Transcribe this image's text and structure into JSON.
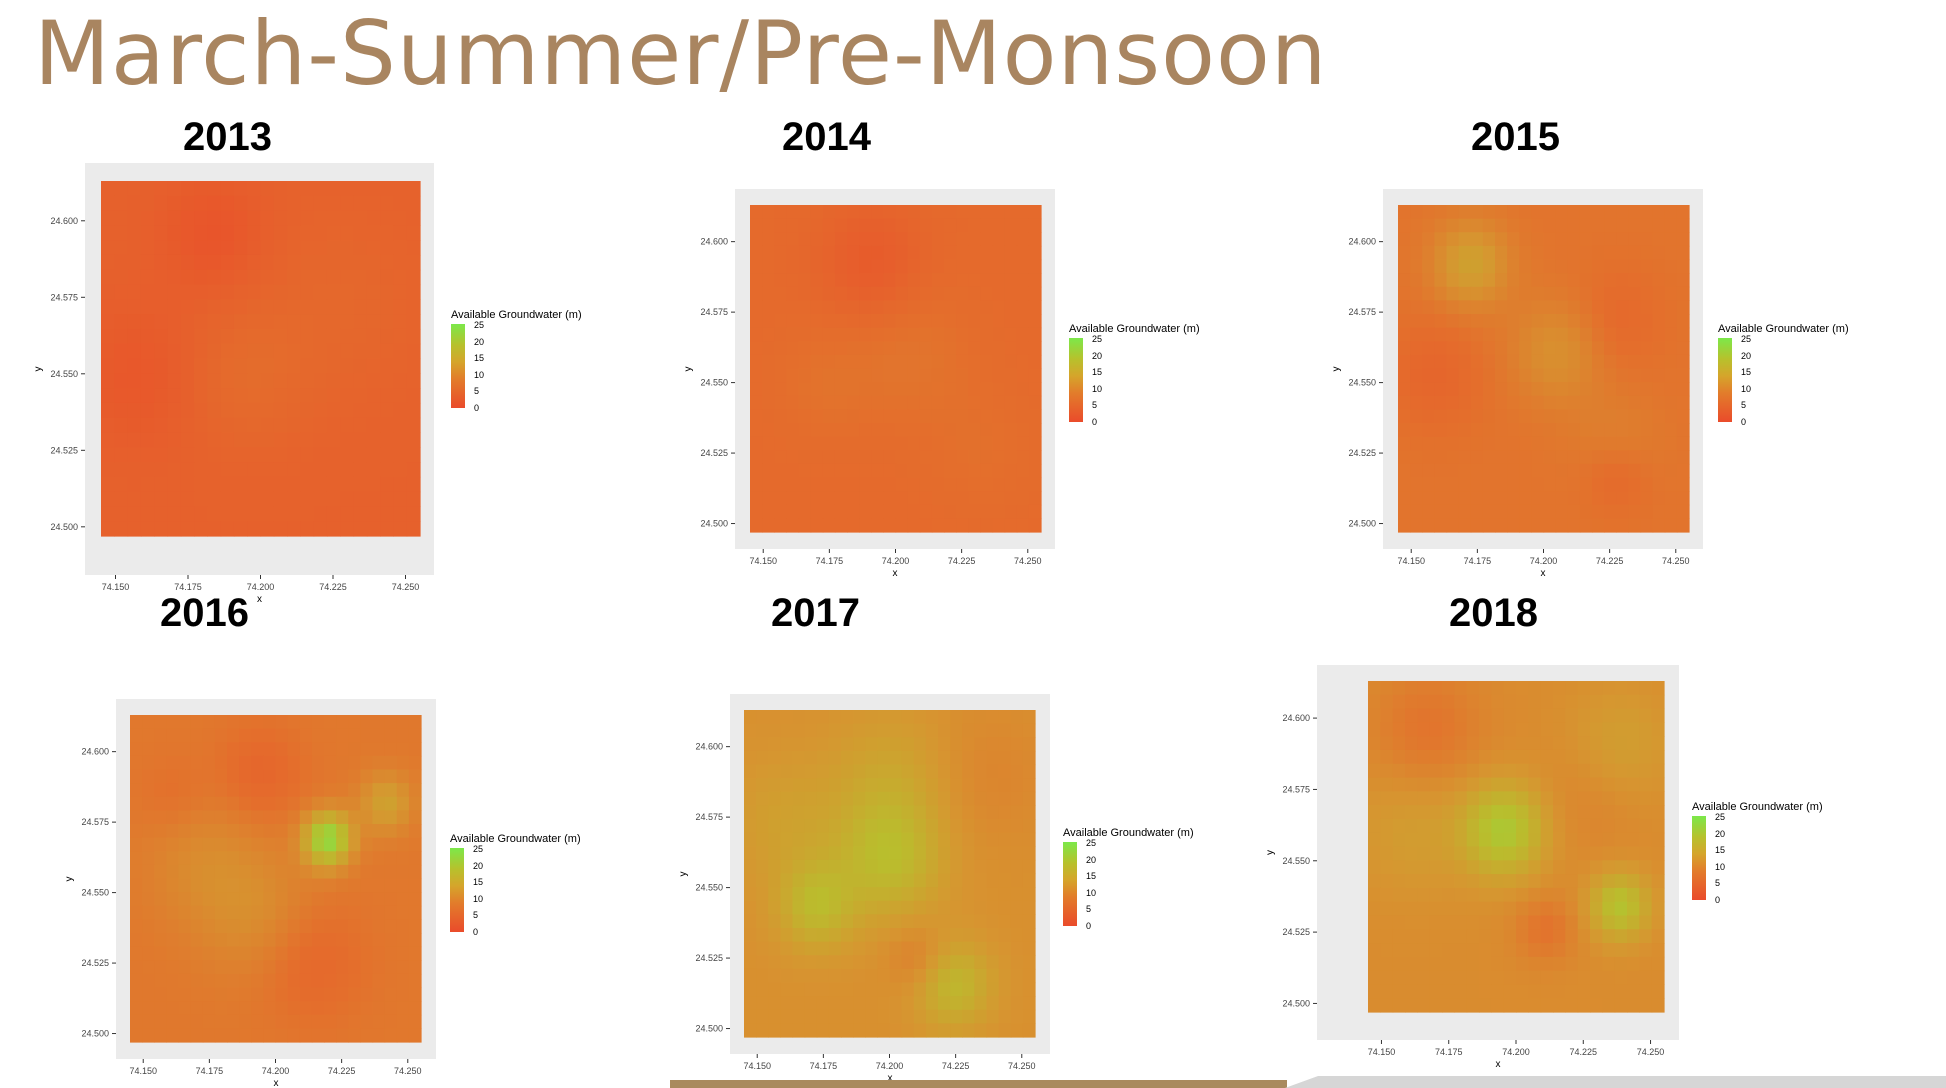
{
  "title": "March-Summer/Pre-Monsoon",
  "chart_data": [
    {
      "type": "heatmap",
      "year": "2013",
      "x_ticks": [
        "74.150",
        "74.175",
        "74.200",
        "74.225",
        "74.250"
      ],
      "y_ticks": [
        "24.600",
        "24.575",
        "24.550",
        "24.525",
        "24.500"
      ],
      "xlabel": "x",
      "ylabel": "y",
      "xlim": [
        74.145,
        74.255
      ],
      "ylim": [
        24.497,
        24.613
      ],
      "legend_title": "Available Groundwater (m)",
      "legend_ticks": [
        "25",
        "20",
        "15",
        "10",
        "5",
        "0"
      ],
      "colors": {
        "low": "#ea4b2b",
        "high": "#7ce84a"
      }
    },
    {
      "type": "heatmap",
      "year": "2014",
      "x_ticks": [
        "74.150",
        "74.175",
        "74.200",
        "74.225",
        "74.250"
      ],
      "y_ticks": [
        "24.600",
        "24.575",
        "24.550",
        "24.525",
        "24.500"
      ],
      "xlabel": "x",
      "ylabel": "y",
      "xlim": [
        74.145,
        74.255
      ],
      "ylim": [
        24.497,
        24.613
      ],
      "legend_title": "Available Groundwater (m)",
      "legend_ticks": [
        "25",
        "20",
        "15",
        "10",
        "5",
        "0"
      ],
      "colors": {
        "low": "#ea4b2b",
        "high": "#7ce84a"
      }
    },
    {
      "type": "heatmap",
      "year": "2015",
      "x_ticks": [
        "74.150",
        "74.175",
        "74.200",
        "74.225",
        "74.250"
      ],
      "y_ticks": [
        "24.600",
        "24.575",
        "24.550",
        "24.525",
        "24.500"
      ],
      "xlabel": "x",
      "ylabel": "y",
      "xlim": [
        74.145,
        74.255
      ],
      "ylim": [
        24.497,
        24.613
      ],
      "legend_title": "Available Groundwater (m)",
      "legend_ticks": [
        "25",
        "20",
        "15",
        "10",
        "5",
        "0"
      ],
      "colors": {
        "low": "#ea4b2b",
        "high": "#7ce84a"
      }
    },
    {
      "type": "heatmap",
      "year": "2016",
      "x_ticks": [
        "74.150",
        "74.175",
        "74.200",
        "74.225",
        "74.250"
      ],
      "y_ticks": [
        "24.600",
        "24.575",
        "24.550",
        "24.525",
        "24.500"
      ],
      "xlabel": "x",
      "ylabel": "y",
      "xlim": [
        74.145,
        74.255
      ],
      "ylim": [
        24.497,
        24.613
      ],
      "legend_title": "Available Groundwater (m)",
      "legend_ticks": [
        "25",
        "20",
        "15",
        "10",
        "5",
        "0"
      ],
      "colors": {
        "low": "#ea4b2b",
        "high": "#7ce84a"
      }
    },
    {
      "type": "heatmap",
      "year": "2017",
      "x_ticks": [
        "74.150",
        "74.175",
        "74.200",
        "74.225",
        "74.250"
      ],
      "y_ticks": [
        "24.600",
        "24.575",
        "24.550",
        "24.525",
        "24.500"
      ],
      "xlabel": "x",
      "ylabel": "y",
      "xlim": [
        74.145,
        74.255
      ],
      "ylim": [
        24.497,
        24.613
      ],
      "legend_title": "Available Groundwater (m)",
      "legend_ticks": [
        "25",
        "20",
        "15",
        "10",
        "5",
        "0"
      ],
      "colors": {
        "low": "#ea4b2b",
        "high": "#7ce84a"
      }
    },
    {
      "type": "heatmap",
      "year": "2018",
      "x_ticks": [
        "74.150",
        "74.175",
        "74.200",
        "74.225",
        "74.250"
      ],
      "y_ticks": [
        "24.600",
        "24.575",
        "24.550",
        "24.525",
        "24.500"
      ],
      "xlabel": "x",
      "ylabel": "y",
      "xlim": [
        74.145,
        74.255
      ],
      "ylim": [
        24.497,
        24.613
      ],
      "legend_title": "Available Groundwater (m)",
      "legend_ticks": [
        "25",
        "20",
        "15",
        "10",
        "5",
        "0"
      ],
      "colors": {
        "low": "#ea4b2b",
        "high": "#7ce84a"
      }
    }
  ]
}
